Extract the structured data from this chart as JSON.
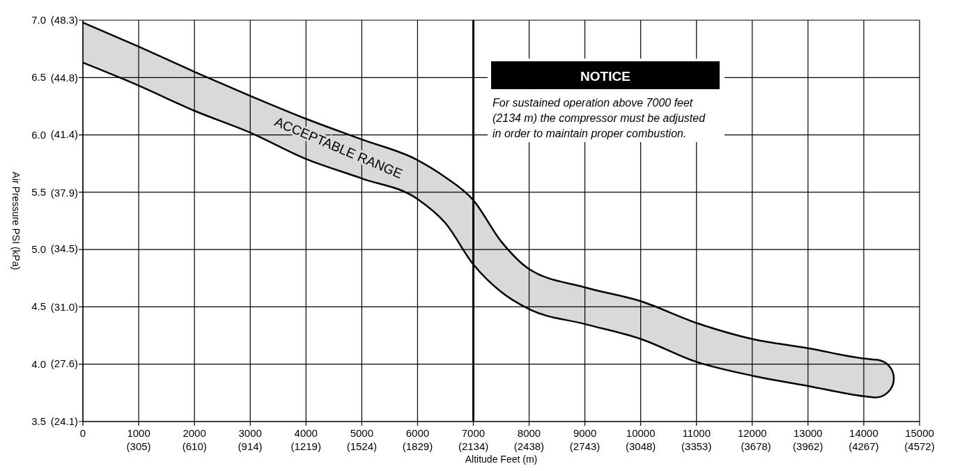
{
  "chart_data": {
    "type": "area",
    "xlabel": "Altitude Feet (m)",
    "ylabel": "Air Pressure PSI (kPa)",
    "x": [
      0,
      1000,
      2000,
      3000,
      4000,
      5000,
      6000,
      6500,
      7000,
      7500,
      8000,
      9000,
      10000,
      11000,
      12000,
      13000,
      14000,
      14200
    ],
    "series": [
      {
        "color": "#d9d9d9",
        "values": [
          6.98,
          6.77,
          6.55,
          6.34,
          6.14,
          5.96,
          5.78,
          5.63,
          5.43,
          5.07,
          4.83,
          4.67,
          4.55,
          4.36,
          4.22,
          4.14,
          4.05,
          4.04
        ]
      },
      {
        "color": "#ffffff",
        "values": [
          6.63,
          6.43,
          6.21,
          6.02,
          5.79,
          5.62,
          5.44,
          5.23,
          4.87,
          4.63,
          4.48,
          4.35,
          4.22,
          4.02,
          3.9,
          3.81,
          3.72,
          3.71
        ]
      }
    ],
    "xlim": [
      0,
      15000
    ],
    "ylim": [
      3.5,
      7.0
    ],
    "xticks": [
      0,
      1000,
      2000,
      3000,
      4000,
      5000,
      6000,
      7000,
      8000,
      9000,
      10000,
      11000,
      12000,
      13000,
      14000,
      15000
    ],
    "yticks": [
      3.5,
      {
        "value": 4,
        "label": "4.0"
      },
      4.5,
      {
        "value": 5,
        "label": "5.0"
      },
      5.5,
      {
        "value": 6,
        "label": "6.0"
      },
      6.5,
      {
        "value": 7,
        "label": "7.0"
      }
    ],
    "x2lim": [
      0,
      4572
    ],
    "x2ticks": [
      {
        "value": 305,
        "label": "(305)"
      },
      {
        "value": 610,
        "label": "(610)"
      },
      {
        "value": 914,
        "label": "(914)"
      },
      {
        "value": 1219,
        "label": "(1219)"
      },
      {
        "value": 1524,
        "label": "(1524)"
      },
      {
        "value": 1829,
        "label": "(1829)"
      },
      {
        "value": 2134,
        "label": "(2134)"
      },
      {
        "value": 2438,
        "label": "(2438)"
      },
      {
        "value": 2743,
        "label": "(2743)"
      },
      {
        "value": 3048,
        "label": "(3048)"
      },
      {
        "value": 3353,
        "label": "(3353)"
      },
      {
        "value": 3678,
        "label": "(3678)"
      },
      {
        "value": 3962,
        "label": "(3962)"
      },
      {
        "value": 4267,
        "label": "(4267)"
      },
      {
        "value": 4572,
        "label": "(4572)"
      }
    ],
    "y2lim": [
      24.1,
      48.3
    ],
    "y2ticks": [
      {
        "value": 24.1,
        "label": "(24.1)"
      },
      {
        "value": 27.6,
        "label": "(27.6)"
      },
      {
        "value": 31.0,
        "label": "(31.0)"
      },
      {
        "value": 34.5,
        "label": "(34.5)"
      },
      {
        "value": 37.9,
        "label": "(37.9)"
      },
      {
        "value": 41.4,
        "label": "(41.4)"
      },
      {
        "value": 44.8,
        "label": "(44.8)"
      },
      {
        "value": 48.3,
        "label": "(48.3)"
      }
    ],
    "grid": true,
    "ref_lines": [
      {
        "axis": "x",
        "value": 7000,
        "color": "#000000"
      }
    ],
    "annotations": [
      "ACCEPTABLE RANGE",
      "NOTICE",
      "For sustained operation above 7000 feet\n(2134 m) the compressor must be adjusted\nin order to maintain proper combustion."
    ]
  }
}
